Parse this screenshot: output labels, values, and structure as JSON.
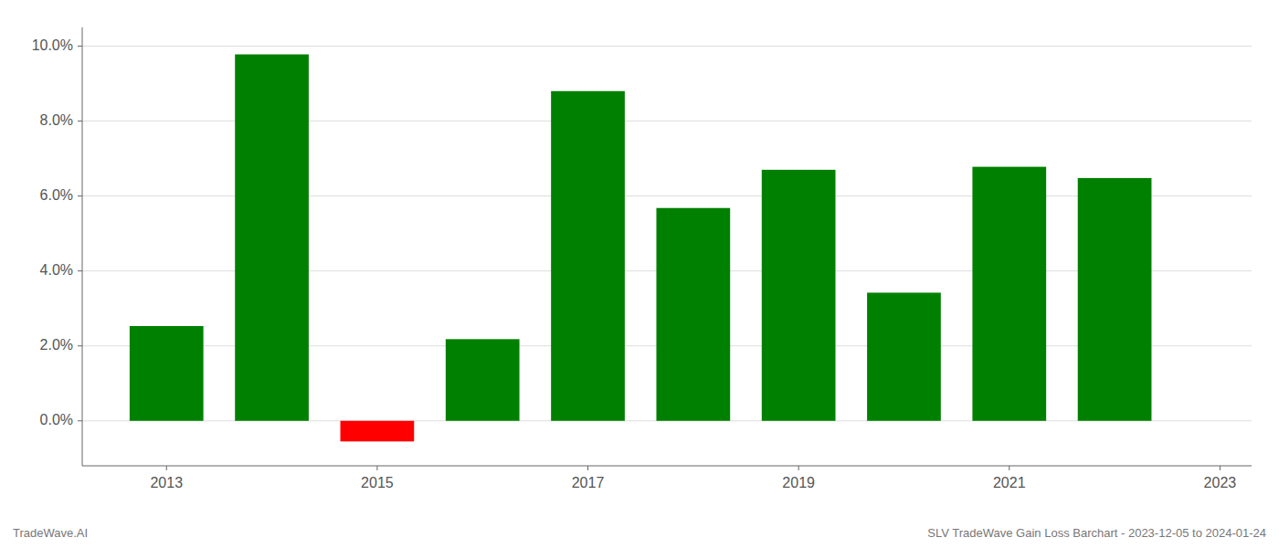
{
  "chart_data": {
    "type": "bar",
    "x": [
      2013,
      2014,
      2015,
      2016,
      2017,
      2018,
      2019,
      2020,
      2021,
      2022
    ],
    "values": [
      0.0253,
      0.0978,
      -0.0055,
      0.0218,
      0.088,
      0.0568,
      0.067,
      0.0342,
      0.0678,
      0.0648
    ],
    "colors": [
      "#008000",
      "#008000",
      "#ff0000",
      "#008000",
      "#008000",
      "#008000",
      "#008000",
      "#008000",
      "#008000",
      "#008000"
    ],
    "ylim": [
      -0.012,
      0.105
    ],
    "yticks": [
      {
        "value": 0.0,
        "label": "0.0%"
      },
      {
        "value": 0.02,
        "label": "2.0%"
      },
      {
        "value": 0.04,
        "label": "4.0%"
      },
      {
        "value": 0.06,
        "label": "6.0%"
      },
      {
        "value": 0.08,
        "label": "8.0%"
      },
      {
        "value": 0.1,
        "label": "10.0%"
      }
    ],
    "xlim": [
      2012.2,
      2023.3
    ],
    "xticks": [
      2013,
      2015,
      2017,
      2019,
      2021,
      2023
    ],
    "grid": true,
    "annotations": [
      "TradeWave.AI",
      "SLV TradeWave Gain Loss Barchart - 2023-12-05 to 2024-01-24"
    ]
  }
}
